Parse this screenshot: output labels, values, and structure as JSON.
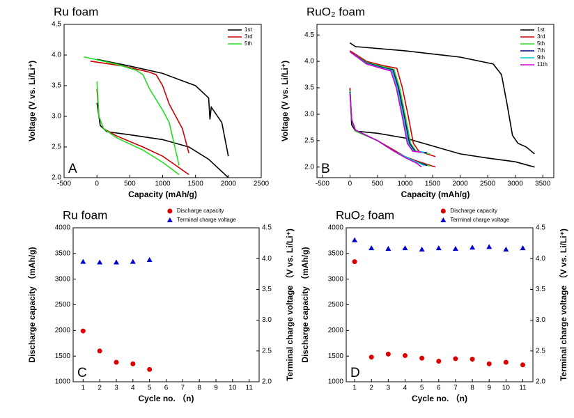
{
  "chart_data": [
    {
      "type": "line",
      "title": "Ru foam",
      "panel_label": "A",
      "xlabel": "Capacity (mAh/g)",
      "ylabel": "Voltage (V vs. Li/Li⁺)",
      "xlim": [
        -500,
        2500
      ],
      "xticks": [
        -500,
        0,
        500,
        1000,
        1500,
        2000,
        2500
      ],
      "ylim": [
        2.0,
        4.5
      ],
      "yticks": [
        {
          "value": 2,
          "label": "2.0"
        },
        2.5,
        {
          "value": 3,
          "label": "3.0"
        },
        3.5,
        {
          "value": 4,
          "label": "4.0"
        },
        4.5
      ],
      "legend": "top-right",
      "series": [
        {
          "name": "1st",
          "color": "#000000",
          "x": [
            0,
            50,
            150,
            500,
            1000,
            1400,
            1700,
            2000,
            null,
            0,
            500,
            1000,
            1500,
            1700,
            1720,
            1740,
            1900,
            2000
          ],
          "values": [
            3.22,
            2.85,
            2.75,
            2.7,
            2.62,
            2.5,
            2.3,
            2.0,
            null,
            3.93,
            3.82,
            3.7,
            3.5,
            3.3,
            2.95,
            3.15,
            2.9,
            2.35
          ]
        },
        {
          "name": "3rd",
          "color": "#cc0000",
          "x": [
            0,
            30,
            100,
            300,
            700,
            1000,
            1200,
            1400,
            null,
            -100,
            400,
            800,
            900,
            1000,
            1100,
            1300,
            1400
          ],
          "values": [
            3.45,
            3.0,
            2.8,
            2.68,
            2.5,
            2.35,
            2.2,
            2.05,
            null,
            3.9,
            3.82,
            3.72,
            3.68,
            3.5,
            3.2,
            2.8,
            2.4
          ]
        },
        {
          "name": "5th",
          "color": "#22dd22",
          "x": [
            0,
            30,
            100,
            300,
            700,
            1000,
            1250,
            null,
            -200,
            300,
            600,
            700,
            800,
            1000,
            1100,
            1250
          ],
          "values": [
            3.57,
            3.0,
            2.8,
            2.65,
            2.45,
            2.25,
            2.05,
            null,
            3.97,
            3.85,
            3.75,
            3.68,
            3.45,
            3.1,
            2.9,
            2.2
          ]
        }
      ]
    },
    {
      "type": "line",
      "title": "RuO₂ foam",
      "panel_label": "B",
      "xlabel": "Capacity (mAh/g)",
      "ylabel": "Voltage (V vs. Li/Li⁺)",
      "xlim": [
        -600,
        3700
      ],
      "xticks": [
        -500,
        0,
        500,
        1000,
        1500,
        2000,
        2500,
        3000,
        3500
      ],
      "ylim": [
        1.8,
        4.7
      ],
      "yticks": [
        {
          "value": 2,
          "label": "2.0"
        },
        2.5,
        {
          "value": 3,
          "label": "3.0"
        },
        3.5,
        {
          "value": 4,
          "label": "4.0"
        },
        4.5
      ],
      "legend": "top-right",
      "series": [
        {
          "name": "1st",
          "color": "#000000",
          "x": [
            0,
            30,
            100,
            500,
            1000,
            1500,
            2000,
            2500,
            3000,
            3350,
            null,
            0,
            100,
            1000,
            2000,
            2600,
            2750,
            2850,
            2950,
            3050,
            3200,
            3350
          ],
          "values": [
            3.48,
            2.8,
            2.68,
            2.64,
            2.55,
            2.4,
            2.25,
            2.17,
            2.1,
            2.0,
            null,
            4.35,
            4.28,
            4.2,
            4.08,
            3.95,
            3.75,
            3.2,
            2.6,
            2.45,
            2.38,
            2.25
          ]
        },
        {
          "name": "3rd",
          "color": "#cc0000",
          "x": [
            0,
            30,
            100,
            500,
            800,
            1000,
            1200,
            1550,
            null,
            0,
            300,
            600,
            850,
            950,
            1050,
            1150,
            1250,
            1550
          ],
          "values": [
            3.5,
            2.9,
            2.68,
            2.5,
            2.32,
            2.2,
            2.12,
            2.0,
            null,
            4.2,
            4.0,
            3.92,
            3.87,
            3.5,
            3.0,
            2.45,
            2.3,
            2.2
          ]
        },
        {
          "name": "5th",
          "color": "#22dd22",
          "x": [
            0,
            30,
            100,
            500,
            800,
            1000,
            1200,
            1450,
            null,
            0,
            300,
            600,
            800,
            900,
            1000,
            1100,
            1200,
            1450
          ],
          "values": [
            3.45,
            2.9,
            2.68,
            2.5,
            2.3,
            2.2,
            2.1,
            2.02,
            null,
            4.18,
            3.98,
            3.9,
            3.85,
            3.5,
            3.0,
            2.45,
            2.3,
            2.25
          ]
        },
        {
          "name": "7th",
          "color": "#000080",
          "x": [
            0,
            30,
            100,
            500,
            800,
            1000,
            1200,
            1400,
            null,
            0,
            300,
            600,
            780,
            880,
            980,
            1080,
            1180,
            1400
          ],
          "values": [
            3.42,
            2.9,
            2.7,
            2.5,
            2.3,
            2.2,
            2.1,
            2.03,
            null,
            4.18,
            3.97,
            3.88,
            3.84,
            3.5,
            3.0,
            2.45,
            2.3,
            2.27
          ]
        },
        {
          "name": "9th",
          "color": "#00cccc",
          "x": [
            0,
            30,
            100,
            500,
            800,
            1000,
            1200,
            1350,
            null,
            0,
            300,
            600,
            760,
            860,
            960,
            1060,
            1160,
            1350
          ],
          "values": [
            3.4,
            2.9,
            2.7,
            2.5,
            2.3,
            2.2,
            2.1,
            2.03,
            null,
            4.18,
            3.96,
            3.87,
            3.83,
            3.5,
            3.0,
            2.45,
            2.3,
            2.28
          ]
        },
        {
          "name": "11th",
          "color": "#cc00cc",
          "x": [
            0,
            30,
            100,
            500,
            800,
            1000,
            1200,
            1300,
            null,
            0,
            300,
            600,
            740,
            840,
            940,
            1040,
            1140,
            1300
          ],
          "values": [
            3.38,
            2.9,
            2.7,
            2.5,
            2.3,
            2.18,
            2.08,
            2.0,
            null,
            4.18,
            3.95,
            3.86,
            3.82,
            3.5,
            3.0,
            2.45,
            2.3,
            2.28
          ]
        }
      ]
    },
    {
      "type": "scatter",
      "title": "Ru foam",
      "panel_label": "C",
      "xlabel": "Cycle no. （n)",
      "ylabel": "Discharge capacity （mAh/g)",
      "y2label": "Terminal charge voltage （V vs. Li/Li⁺)",
      "xlim": [
        0.4,
        11.6
      ],
      "xticks": [
        1,
        2,
        3,
        4,
        5,
        6,
        7,
        8,
        9,
        10,
        11
      ],
      "ylim": [
        1000,
        4000
      ],
      "yticks": [
        1000,
        1500,
        2000,
        2500,
        3000,
        3500,
        4000
      ],
      "y2lim": [
        2.0,
        4.5
      ],
      "y2ticks": [
        {
          "value": 2,
          "label": "2.0"
        },
        2.5,
        {
          "value": 3,
          "label": "3.0"
        },
        3.5,
        {
          "value": 4,
          "label": "4.0"
        },
        4.5
      ],
      "legend": "above",
      "x": [
        1,
        2,
        3,
        4,
        5
      ],
      "series": [
        {
          "name": "Discharge capacity",
          "color": "#dd0000",
          "marker": "circle",
          "values": [
            1990,
            1600,
            1380,
            1350,
            1240
          ]
        },
        {
          "name": "Terminal charge voltage",
          "color": "#0000cc",
          "marker": "triangle",
          "axis": "y2",
          "values": [
            3.95,
            3.94,
            3.94,
            3.95,
            3.98
          ]
        }
      ]
    },
    {
      "type": "scatter",
      "title": "RuO₂ foam",
      "panel_label": "D",
      "xlabel": "Cycle no. （n)",
      "ylabel": "Discharge capacity （mAh/g)",
      "y2label": "Terminal charge voltage （V vs. Li/Li⁺)",
      "xlim": [
        0.5,
        11.6
      ],
      "xticks": [
        1,
        2,
        3,
        4,
        5,
        6,
        7,
        8,
        9,
        10,
        11
      ],
      "ylim": [
        1000,
        4000
      ],
      "yticks": [
        1000,
        1500,
        2000,
        2500,
        3000,
        3500,
        4000
      ],
      "y2lim": [
        2.0,
        4.5
      ],
      "y2ticks": [
        {
          "value": 2,
          "label": "2.0"
        },
        2.5,
        {
          "value": 3,
          "label": "3.0"
        },
        3.5,
        {
          "value": 4,
          "label": "4.0"
        },
        4.5
      ],
      "legend": "above",
      "x": [
        1,
        2,
        3,
        4,
        5,
        6,
        7,
        8,
        9,
        10,
        11
      ],
      "series": [
        {
          "name": "Discharge capacity",
          "color": "#dd0000",
          "marker": "circle",
          "values": [
            3340,
            1480,
            1540,
            1510,
            1460,
            1400,
            1450,
            1440,
            1350,
            1380,
            1330
          ]
        },
        {
          "name": "Terminal charge voltage",
          "color": "#0000cc",
          "marker": "triangle",
          "axis": "y2",
          "values": [
            4.3,
            4.17,
            4.16,
            4.17,
            4.15,
            4.17,
            4.16,
            4.18,
            4.19,
            4.15,
            4.17
          ]
        }
      ]
    }
  ]
}
